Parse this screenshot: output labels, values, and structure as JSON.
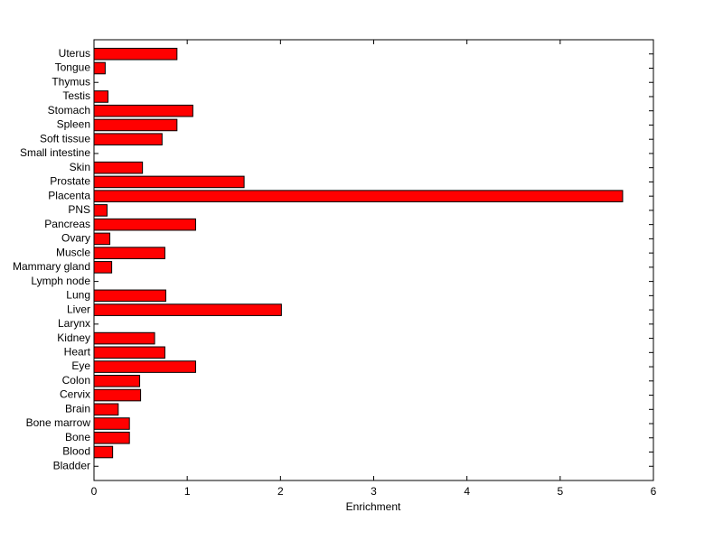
{
  "chart_data": {
    "type": "barh",
    "xlabel": "Enrichment",
    "categories": [
      "Bladder",
      "Blood",
      "Bone",
      "Bone marrow",
      "Brain",
      "Cervix",
      "Colon",
      "Eye",
      "Heart",
      "Kidney",
      "Larynx",
      "Liver",
      "Lung",
      "Lymph node",
      "Mammary gland",
      "Muscle",
      "Ovary",
      "Pancreas",
      "PNS",
      "Placenta",
      "Prostate",
      "Skin",
      "Small intestine",
      "Soft tissue",
      "Spleen",
      "Stomach",
      "Testis",
      "Thymus",
      "Tongue",
      "Uterus"
    ],
    "values": [
      0,
      0.2,
      0.38,
      0.38,
      0.26,
      0.5,
      0.49,
      1.09,
      0.76,
      0.65,
      0,
      2.01,
      0.77,
      0,
      0.19,
      0.76,
      0.17,
      1.09,
      0.14,
      5.67,
      1.61,
      0.52,
      0,
      0.73,
      0.89,
      1.06,
      0.15,
      0,
      0.12,
      0.89
    ],
    "color": "#ff0000",
    "xlim": [
      0,
      6
    ],
    "xticks": [
      0,
      1,
      2,
      3,
      4,
      5,
      6
    ]
  }
}
